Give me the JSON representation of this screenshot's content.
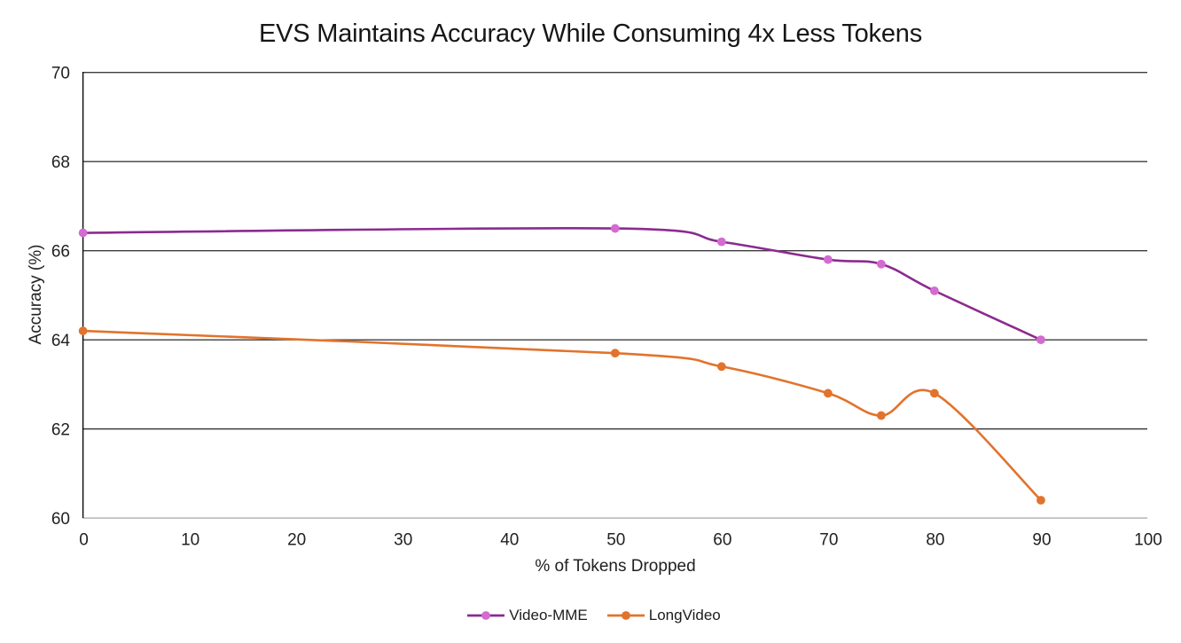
{
  "chart_data": {
    "type": "line",
    "title": "EVS Maintains Accuracy While Consuming 4x Less Tokens",
    "xlabel": "% of Tokens Dropped",
    "ylabel": "Accuracy (%)",
    "xlim": [
      0,
      100
    ],
    "ylim": [
      60,
      70
    ],
    "x_ticks": [
      0,
      10,
      20,
      30,
      40,
      50,
      60,
      70,
      80,
      90,
      100
    ],
    "y_ticks": [
      60,
      62,
      64,
      66,
      68,
      70
    ],
    "grid": "horizontal-major",
    "smooth_lines": true,
    "legend_position": "bottom-center",
    "x": [
      0,
      50,
      60,
      70,
      75,
      80,
      90
    ],
    "series": [
      {
        "name": "Video-MME",
        "line_color": "#8B2B8F",
        "marker_color": "#D46BD1",
        "values": [
          66.4,
          66.5,
          66.2,
          65.8,
          65.7,
          65.1,
          64.0
        ]
      },
      {
        "name": "LongVideo",
        "line_color": "#E2732C",
        "marker_color": "#E2732C",
        "values": [
          64.2,
          63.7,
          63.4,
          62.8,
          62.3,
          62.8,
          60.4
        ]
      }
    ],
    "style": {
      "background_color": "#FFFFFF",
      "gridline_color": "#3C3C3C",
      "y_axis_line_color": "#0D0D0D",
      "x_axis_line_color": "#BFBFBF",
      "tick_label_color": "#212121",
      "title_color": "#161616"
    }
  }
}
